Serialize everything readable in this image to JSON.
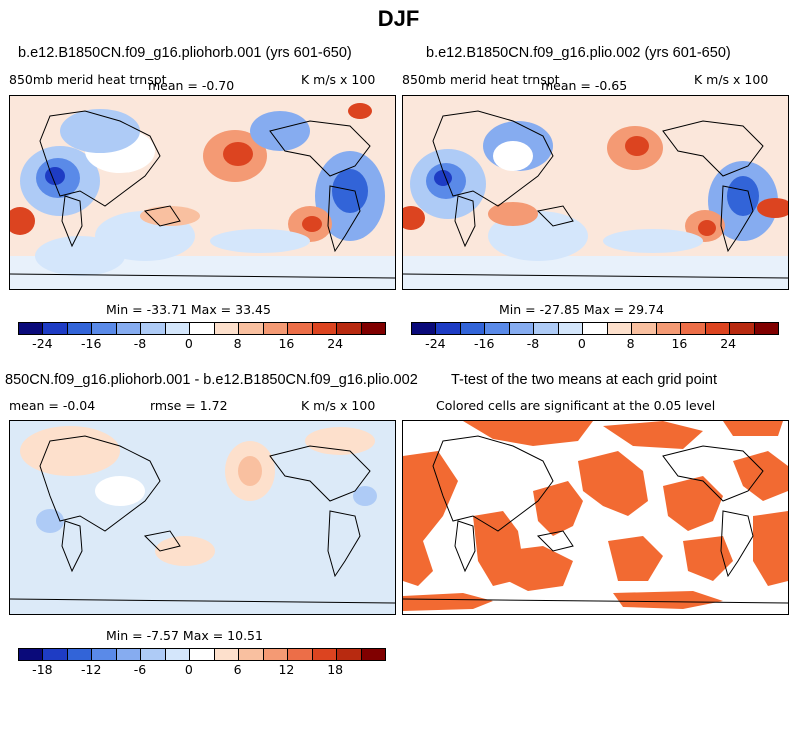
{
  "title": "DJF",
  "panels": [
    {
      "id": "p1",
      "title": "b.e12.B1850CN.f09_g16.pliohorb.001 (yrs 601-650)",
      "variable_label": "850mb merid heat trnspt",
      "mean_label": "mean =   -0.70",
      "units": "K m/s x 100",
      "minmax_label": "Min = -33.71  Max =  33.45"
    },
    {
      "id": "p2",
      "title": "b.e12.B1850CN.f09_g16.plio.002 (yrs 601-650)",
      "variable_label": "850mb merid heat trnspt",
      "mean_label": "mean =   -0.65",
      "units": "K m/s x 100",
      "minmax_label": "Min = -27.85  Max =  29.74"
    },
    {
      "id": "p3",
      "title": "850CN.f09_g16.pliohorb.001 - b.e12.B1850CN.f09_g16.plio.002",
      "mean_label": "mean =   -0.04",
      "rmse_label": "rmse =    1.72",
      "units": "K m/s x 100",
      "minmax_label": "Min =  -7.57  Max =  10.51"
    },
    {
      "id": "p4",
      "title": "T-test of the two means at each grid point",
      "subtitle": "Colored cells are significant at the 0.05 level"
    }
  ],
  "colorbar_top": {
    "ticks": [
      "-24",
      "-16",
      "-8",
      "0",
      "8",
      "16",
      "24"
    ],
    "colors": [
      "#0a0a7a",
      "#1e3cc4",
      "#3264d8",
      "#5a8ae8",
      "#86acf0",
      "#aecbf6",
      "#d4e6fb",
      "#ffffff",
      "#fde0cc",
      "#f9c0a0",
      "#f49a74",
      "#ec6e48",
      "#dc4420",
      "#b82a10",
      "#800000"
    ]
  },
  "colorbar_diff": {
    "ticks": [
      "-18",
      "-12",
      "-6",
      "0",
      "6",
      "12",
      "18"
    ],
    "colors": [
      "#0a0a7a",
      "#1e3cc4",
      "#3264d8",
      "#5a8ae8",
      "#86acf0",
      "#aecbf6",
      "#d4e6fb",
      "#ffffff",
      "#fde0cc",
      "#f9c0a0",
      "#f49a74",
      "#ec6e48",
      "#dc4420",
      "#b82a10",
      "#800000"
    ]
  },
  "colors": {
    "significant": "#f26a32",
    "field_bg_top": "#fbe7db",
    "field_bg_diff": "#dceaf8"
  }
}
